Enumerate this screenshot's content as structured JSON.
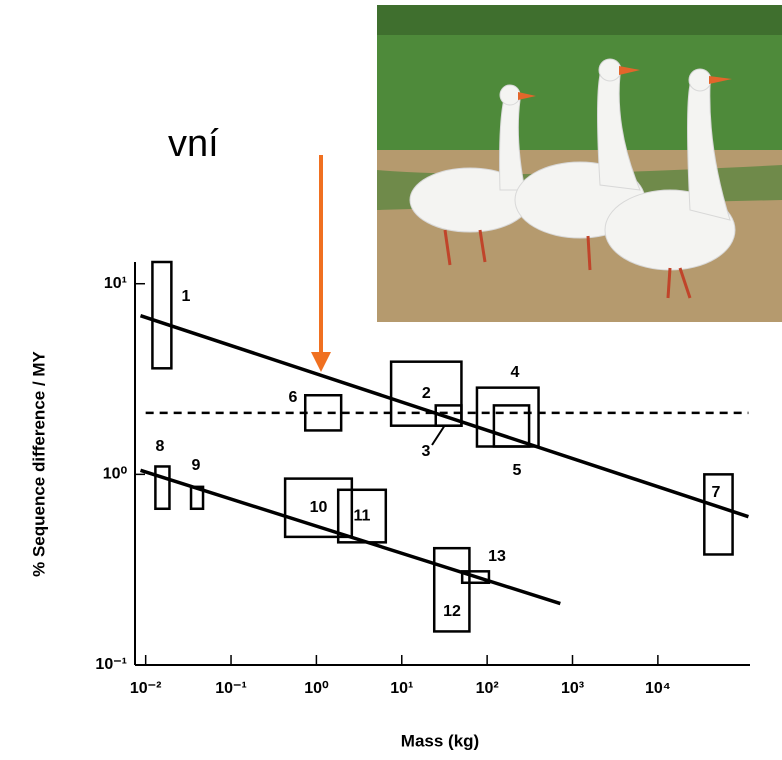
{
  "heading": "vní",
  "chart_data": {
    "type": "range-box",
    "xlabel": "Mass (kg)",
    "ylabel": "% Sequence difference / MY",
    "xscale": "log",
    "yscale": "log",
    "xlim": [
      0.0075,
      120000
    ],
    "ylim": [
      0.1,
      13
    ],
    "xticks": [
      {
        "value": 0.01,
        "label": "10⁻²"
      },
      {
        "value": 0.1,
        "label": "10⁻¹"
      },
      {
        "value": 1,
        "label": "10⁰"
      },
      {
        "value": 10,
        "label": "10¹"
      },
      {
        "value": 100,
        "label": "10²"
      },
      {
        "value": 1000,
        "label": "10³"
      },
      {
        "value": 10000,
        "label": "10⁴"
      }
    ],
    "yticks": [
      {
        "value": 0.1,
        "label": "10⁻¹"
      },
      {
        "value": 1,
        "label": "10⁰"
      },
      {
        "value": 10,
        "label": "10¹"
      }
    ],
    "boxes": [
      {
        "label": "1",
        "mass": [
          0.012,
          0.02
        ],
        "rate": [
          3.6,
          13
        ]
      },
      {
        "label": "2",
        "mass": [
          7.5,
          50
        ],
        "rate": [
          1.8,
          3.9
        ]
      },
      {
        "label": "3",
        "mass": [
          25,
          50
        ],
        "rate": [
          1.8,
          2.3
        ]
      },
      {
        "label": "4",
        "mass": [
          76,
          400
        ],
        "rate": [
          1.4,
          2.85
        ]
      },
      {
        "label": "5",
        "mass": [
          120,
          310
        ],
        "rate": [
          1.4,
          2.3
        ]
      },
      {
        "label": "6",
        "mass": [
          0.74,
          1.95
        ],
        "rate": [
          1.7,
          2.6
        ]
      },
      {
        "label": "7",
        "mass": [
          35000,
          75000
        ],
        "rate": [
          0.38,
          1.0
        ]
      },
      {
        "label": "8",
        "mass": [
          0.013,
          0.019
        ],
        "rate": [
          0.66,
          1.1
        ]
      },
      {
        "label": "9",
        "mass": [
          0.034,
          0.047
        ],
        "rate": [
          0.66,
          0.86
        ]
      },
      {
        "label": "10",
        "mass": [
          0.43,
          2.6
        ],
        "rate": [
          0.47,
          0.95
        ]
      },
      {
        "label": "11",
        "mass": [
          1.8,
          6.5
        ],
        "rate": [
          0.44,
          0.83
        ]
      },
      {
        "label": "12",
        "mass": [
          24,
          62
        ],
        "rate": [
          0.15,
          0.41
        ]
      },
      {
        "label": "13",
        "mass": [
          51,
          105
        ],
        "rate": [
          0.27,
          0.31
        ]
      }
    ],
    "lines": [
      {
        "x": [
          0.0087,
          115000
        ],
        "y": [
          6.8,
          0.6
        ],
        "style": "solid"
      },
      {
        "x": [
          0.0087,
          720
        ],
        "y": [
          1.05,
          0.21
        ],
        "style": "solid"
      },
      {
        "x": [
          0.01,
          115000
        ],
        "y": [
          2.1,
          2.1
        ],
        "style": "dashed"
      }
    ]
  }
}
